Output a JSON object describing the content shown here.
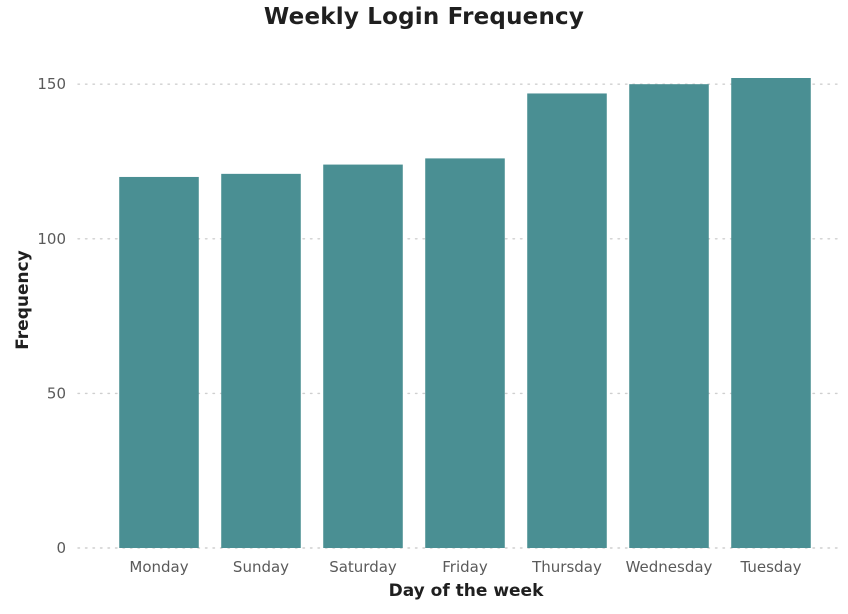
{
  "chart_data": {
    "type": "bar",
    "title": "Weekly Login Frequency",
    "xlabel": "Day of the week",
    "ylabel": "Frequency",
    "categories": [
      "Monday",
      "Sunday",
      "Saturday",
      "Friday",
      "Thursday",
      "Wednesday",
      "Tuesday"
    ],
    "values": [
      120,
      121,
      124,
      126,
      147,
      150,
      152
    ],
    "ylim": [
      0,
      152
    ],
    "yticks": [
      "0",
      "50",
      "100",
      "150"
    ],
    "grid": true,
    "legend": "none",
    "bar_color": "#4a8f93"
  }
}
